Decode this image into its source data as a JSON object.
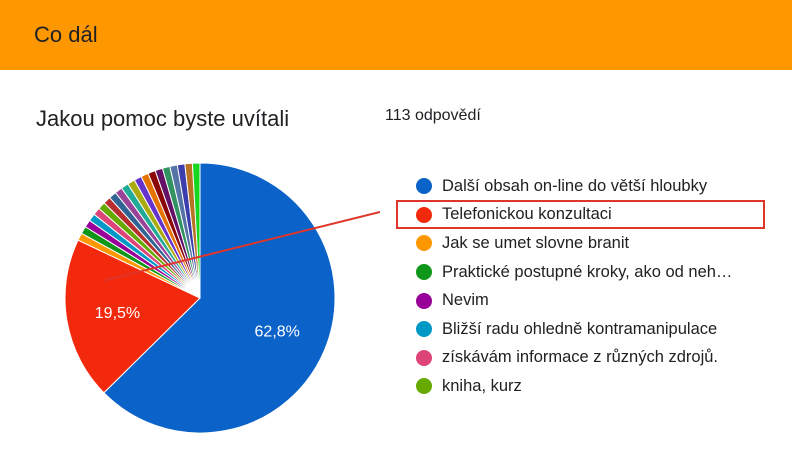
{
  "header": {
    "title": "Co dál"
  },
  "card": {
    "title": "Jakou pomoc byste uvítali",
    "response_count": "113 odpovědí"
  },
  "annotation": {
    "color": "#e0352b",
    "highlighted_legend_index": 1
  },
  "chart_data": {
    "type": "pie",
    "title": "Jakou pomoc byste uvítali",
    "slices": [
      {
        "label": "Další obsah on-line do větší hloubky",
        "value": 62.8,
        "value_label": "62,8%",
        "color": "#0b63c9"
      },
      {
        "label": "Telefonickou konzultaci",
        "value": 19.5,
        "value_label": "19,5%",
        "color": "#f2290c"
      },
      {
        "label": "Jak se umet slovne branit",
        "value": 0.9,
        "color": "#ff9800"
      },
      {
        "label": "Praktické postupné kroky, ako od neh…",
        "value": 0.9,
        "color": "#109618"
      },
      {
        "label": "Nevim",
        "value": 0.9,
        "color": "#990099"
      },
      {
        "label": "Bližší radu ohledně kontramanipulace",
        "value": 0.9,
        "color": "#0099c6"
      },
      {
        "label": "získávám informace z různých zdrojů.",
        "value": 0.9,
        "color": "#dd4477"
      },
      {
        "label": "kniha, kurz",
        "value": 0.9,
        "color": "#66aa00"
      },
      {
        "value": 0.9,
        "color": "#b82e2e"
      },
      {
        "value": 0.9,
        "color": "#316395"
      },
      {
        "value": 0.9,
        "color": "#994499"
      },
      {
        "value": 0.9,
        "color": "#22aa99"
      },
      {
        "value": 0.9,
        "color": "#aaaa11"
      },
      {
        "value": 0.9,
        "color": "#6633cc"
      },
      {
        "value": 0.9,
        "color": "#e67300"
      },
      {
        "value": 0.9,
        "color": "#8b0707"
      },
      {
        "value": 0.9,
        "color": "#651067"
      },
      {
        "value": 0.9,
        "color": "#329262"
      },
      {
        "value": 0.9,
        "color": "#5574a6"
      },
      {
        "value": 0.9,
        "color": "#3b3eac"
      },
      {
        "value": 0.9,
        "color": "#b77322"
      },
      {
        "value": 0.9,
        "color": "#16d620"
      }
    ],
    "legend": {
      "position": "right",
      "entries": [
        "Další obsah on-line do větší hloubky",
        "Telefonickou konzultaci",
        "Jak se umet slovne branit",
        "Praktické postupné kroky, ako od neh…",
        "Nevim",
        "Bližší radu ohledně kontramanipulace",
        "získávám informace z různých zdrojů.",
        "kniha, kurz"
      ]
    }
  }
}
